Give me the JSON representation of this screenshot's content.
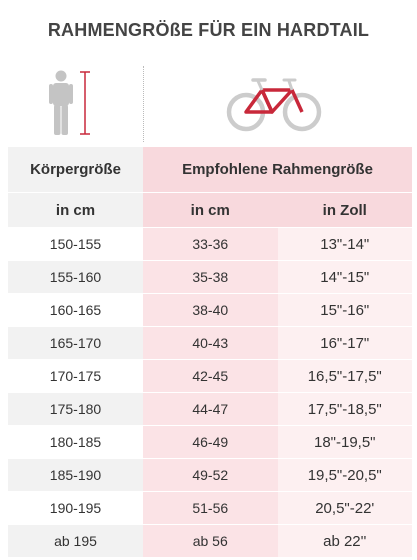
{
  "title": "RAHMENGRÖßE FÜR EIN HARDTAIL",
  "icons": {
    "person": "person-height-icon",
    "bike": "hardtail-bike-icon"
  },
  "colors": {
    "accent": "#c8283a",
    "pink_header": "#f8d9dd",
    "pink_light": "#fbe3e6",
    "grey": "#f2f2f2"
  },
  "table": {
    "header": {
      "body_size": "Körpergröße",
      "recommended": "Empfohlene Rahmengröße"
    },
    "units": {
      "body_cm": "in cm",
      "frame_cm": "in cm",
      "frame_inch": "in Zoll"
    },
    "rows": [
      {
        "body": "150-155",
        "cm": "33-36",
        "inch": "13\"-14\""
      },
      {
        "body": "155-160",
        "cm": "35-38",
        "inch": "14\"-15\""
      },
      {
        "body": "160-165",
        "cm": "38-40",
        "inch": "15\"-16\""
      },
      {
        "body": "165-170",
        "cm": "40-43",
        "inch": "16\"-17\""
      },
      {
        "body": "170-175",
        "cm": "42-45",
        "inch": "16,5\"-17,5\""
      },
      {
        "body": "175-180",
        "cm": "44-47",
        "inch": "17,5\"-18,5\""
      },
      {
        "body": "180-185",
        "cm": "46-49",
        "inch": "18\"-19,5\""
      },
      {
        "body": "185-190",
        "cm": "49-52",
        "inch": "19,5\"-20,5\""
      },
      {
        "body": "190-195",
        "cm": "51-56",
        "inch": "20,5\"-22'"
      },
      {
        "body": "ab 195",
        "cm": "ab 56",
        "inch": "ab 22''"
      }
    ]
  }
}
